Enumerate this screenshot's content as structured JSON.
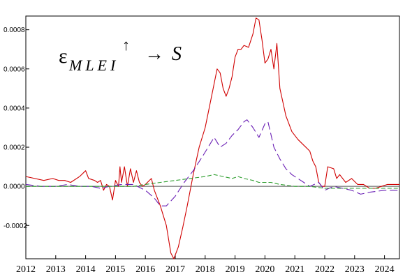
{
  "chart_data": {
    "type": "line",
    "title": "",
    "xlabel": "",
    "ylabel": "",
    "annotation": {
      "epsilon": "ε",
      "subscript": "MLEI",
      "arrow_up": "↑",
      "arrow_right": "→",
      "target": "S"
    },
    "xlim": [
      2012,
      2024.5
    ],
    "ylim": [
      -0.00037,
      0.00087
    ],
    "x_ticks": [
      {
        "value": 2012,
        "label": "2012"
      },
      {
        "value": 2013,
        "label": "2013"
      },
      {
        "value": 2014,
        "label": "2014"
      },
      {
        "value": 2015,
        "label": "2015"
      },
      {
        "value": 2016,
        "label": "2016"
      },
      {
        "value": 2017,
        "label": "2017"
      },
      {
        "value": 2018,
        "label": "2018"
      },
      {
        "value": 2019,
        "label": "2019"
      },
      {
        "value": 2020,
        "label": "2020"
      },
      {
        "value": 2021,
        "label": "2021"
      },
      {
        "value": 2022,
        "label": "2022"
      },
      {
        "value": 2023,
        "label": "2023"
      },
      {
        "value": 2024,
        "label": "2024"
      }
    ],
    "y_ticks": [
      {
        "value": 0.0008,
        "label": "0.0008"
      },
      {
        "value": 0.0006,
        "label": "0.0006"
      },
      {
        "value": 0.0004,
        "label": "0.0004"
      },
      {
        "value": 0.0002,
        "label": "0.0002"
      },
      {
        "value": 0.0,
        "label": "0.0000"
      },
      {
        "value": -0.0002,
        "label": "-0.0002"
      }
    ],
    "zero_line": true,
    "grid": false,
    "legend": "none",
    "series": [
      {
        "color": "#d00000",
        "dash": "solid",
        "points": [
          [
            2012.0,
            5e-05
          ],
          [
            2012.3,
            4e-05
          ],
          [
            2012.6,
            3e-05
          ],
          [
            2012.9,
            4e-05
          ],
          [
            2013.1,
            3e-05
          ],
          [
            2013.3,
            3e-05
          ],
          [
            2013.5,
            2e-05
          ],
          [
            2013.8,
            5e-05
          ],
          [
            2014.0,
            8e-05
          ],
          [
            2014.1,
            4e-05
          ],
          [
            2014.3,
            3e-05
          ],
          [
            2014.4,
            2e-05
          ],
          [
            2014.5,
            3e-05
          ],
          [
            2014.6,
            -2e-05
          ],
          [
            2014.7,
            1e-05
          ],
          [
            2014.8,
            0.0
          ],
          [
            2014.9,
            -7e-05
          ],
          [
            2015.0,
            3e-05
          ],
          [
            2015.1,
            0.0
          ],
          [
            2015.15,
            0.0001
          ],
          [
            2015.2,
            2e-05
          ],
          [
            2015.3,
            0.0001
          ],
          [
            2015.4,
            0.0
          ],
          [
            2015.5,
            9e-05
          ],
          [
            2015.6,
            2e-05
          ],
          [
            2015.7,
            8e-05
          ],
          [
            2015.8,
            2e-05
          ],
          [
            2015.9,
            0.0
          ],
          [
            2016.0,
            1e-05
          ],
          [
            2016.2,
            4e-05
          ],
          [
            2016.3,
            -2e-05
          ],
          [
            2016.5,
            -0.0001
          ],
          [
            2016.7,
            -0.0002
          ],
          [
            2016.85,
            -0.00034
          ],
          [
            2016.95,
            -0.00037
          ],
          [
            2017.1,
            -0.00031
          ],
          [
            2017.25,
            -0.00021
          ],
          [
            2017.4,
            -0.0001
          ],
          [
            2017.6,
            6e-05
          ],
          [
            2017.8,
            0.0002
          ],
          [
            2018.0,
            0.0003
          ],
          [
            2018.2,
            0.00045
          ],
          [
            2018.4,
            0.0006
          ],
          [
            2018.5,
            0.00058
          ],
          [
            2018.6,
            0.0005
          ],
          [
            2018.7,
            0.00046
          ],
          [
            2018.8,
            0.0005
          ],
          [
            2018.9,
            0.00056
          ],
          [
            2019.0,
            0.00066
          ],
          [
            2019.1,
            0.0007
          ],
          [
            2019.2,
            0.0007
          ],
          [
            2019.3,
            0.00072
          ],
          [
            2019.45,
            0.00071
          ],
          [
            2019.6,
            0.00078
          ],
          [
            2019.7,
            0.00086
          ],
          [
            2019.8,
            0.00085
          ],
          [
            2019.9,
            0.00075
          ],
          [
            2020.0,
            0.00063
          ],
          [
            2020.1,
            0.00065
          ],
          [
            2020.2,
            0.0007
          ],
          [
            2020.3,
            0.0006
          ],
          [
            2020.4,
            0.00073
          ],
          [
            2020.5,
            0.0005
          ],
          [
            2020.7,
            0.00036
          ],
          [
            2020.9,
            0.00028
          ],
          [
            2021.1,
            0.00024
          ],
          [
            2021.3,
            0.00021
          ],
          [
            2021.5,
            0.00018
          ],
          [
            2021.6,
            0.00013
          ],
          [
            2021.7,
            0.0001
          ],
          [
            2021.8,
            2e-05
          ],
          [
            2021.9,
            0.0
          ],
          [
            2022.0,
            0.0
          ],
          [
            2022.1,
            0.0001
          ],
          [
            2022.3,
            9e-05
          ],
          [
            2022.4,
            4e-05
          ],
          [
            2022.5,
            6e-05
          ],
          [
            2022.7,
            2e-05
          ],
          [
            2022.9,
            4e-05
          ],
          [
            2023.1,
            1e-05
          ],
          [
            2023.3,
            1e-05
          ],
          [
            2023.5,
            -1e-05
          ],
          [
            2023.7,
            -1e-05
          ],
          [
            2023.9,
            0.0
          ],
          [
            2024.1,
            1e-05
          ],
          [
            2024.5,
            1e-05
          ]
        ]
      },
      {
        "color": "#6a1fb5",
        "dash": "long-dash",
        "points": [
          [
            2012.0,
            1e-05
          ],
          [
            2012.5,
            0.0
          ],
          [
            2013.0,
            0.0
          ],
          [
            2013.4,
            1e-05
          ],
          [
            2013.8,
            0.0
          ],
          [
            2014.2,
            0.0
          ],
          [
            2014.5,
            -1e-05
          ],
          [
            2014.8,
            0.0
          ],
          [
            2015.2,
            1e-05
          ],
          [
            2015.6,
            1e-05
          ],
          [
            2016.0,
            -2e-05
          ],
          [
            2016.3,
            -6e-05
          ],
          [
            2016.5,
            -0.0001
          ],
          [
            2016.7,
            -0.0001
          ],
          [
            2017.0,
            -5e-05
          ],
          [
            2017.3,
            2e-05
          ],
          [
            2017.6,
            8e-05
          ],
          [
            2017.9,
            0.00015
          ],
          [
            2018.1,
            0.0002
          ],
          [
            2018.3,
            0.00025
          ],
          [
            2018.5,
            0.0002
          ],
          [
            2018.7,
            0.00022
          ],
          [
            2018.9,
            0.00026
          ],
          [
            2019.1,
            0.00029
          ],
          [
            2019.3,
            0.00033
          ],
          [
            2019.4,
            0.00034
          ],
          [
            2019.6,
            0.0003
          ],
          [
            2019.8,
            0.00025
          ],
          [
            2020.0,
            0.00032
          ],
          [
            2020.1,
            0.00033
          ],
          [
            2020.3,
            0.0002
          ],
          [
            2020.5,
            0.00014
          ],
          [
            2020.7,
            9e-05
          ],
          [
            2020.9,
            6e-05
          ],
          [
            2021.1,
            4e-05
          ],
          [
            2021.3,
            2e-05
          ],
          [
            2021.5,
            0.0
          ],
          [
            2021.8,
            2e-05
          ],
          [
            2022.0,
            -2e-05
          ],
          [
            2022.3,
            0.0
          ],
          [
            2022.6,
            -1e-05
          ],
          [
            2022.9,
            -2e-05
          ],
          [
            2023.2,
            -4e-05
          ],
          [
            2023.5,
            -3e-05
          ],
          [
            2024.0,
            -2e-05
          ],
          [
            2024.5,
            -2e-05
          ]
        ]
      },
      {
        "color": "#2e9e2e",
        "dash": "dash",
        "points": [
          [
            2012.0,
            0.0
          ],
          [
            2013.0,
            0.0
          ],
          [
            2014.0,
            0.0
          ],
          [
            2015.0,
            0.0
          ],
          [
            2015.6,
            0.0
          ],
          [
            2016.0,
            1e-05
          ],
          [
            2016.5,
            2e-05
          ],
          [
            2017.0,
            3e-05
          ],
          [
            2017.5,
            4e-05
          ],
          [
            2018.0,
            5e-05
          ],
          [
            2018.3,
            6e-05
          ],
          [
            2018.6,
            5e-05
          ],
          [
            2018.9,
            4e-05
          ],
          [
            2019.1,
            5e-05
          ],
          [
            2019.3,
            4e-05
          ],
          [
            2019.6,
            3e-05
          ],
          [
            2019.8,
            2e-05
          ],
          [
            2020.2,
            2e-05
          ],
          [
            2020.5,
            1e-05
          ],
          [
            2021.0,
            0.0
          ],
          [
            2021.5,
            0.0
          ],
          [
            2022.0,
            -1e-05
          ],
          [
            2022.5,
            -1e-05
          ],
          [
            2023.0,
            -1e-05
          ],
          [
            2023.5,
            -1e-05
          ],
          [
            2024.0,
            -1e-05
          ],
          [
            2024.5,
            -1e-05
          ]
        ]
      }
    ]
  }
}
